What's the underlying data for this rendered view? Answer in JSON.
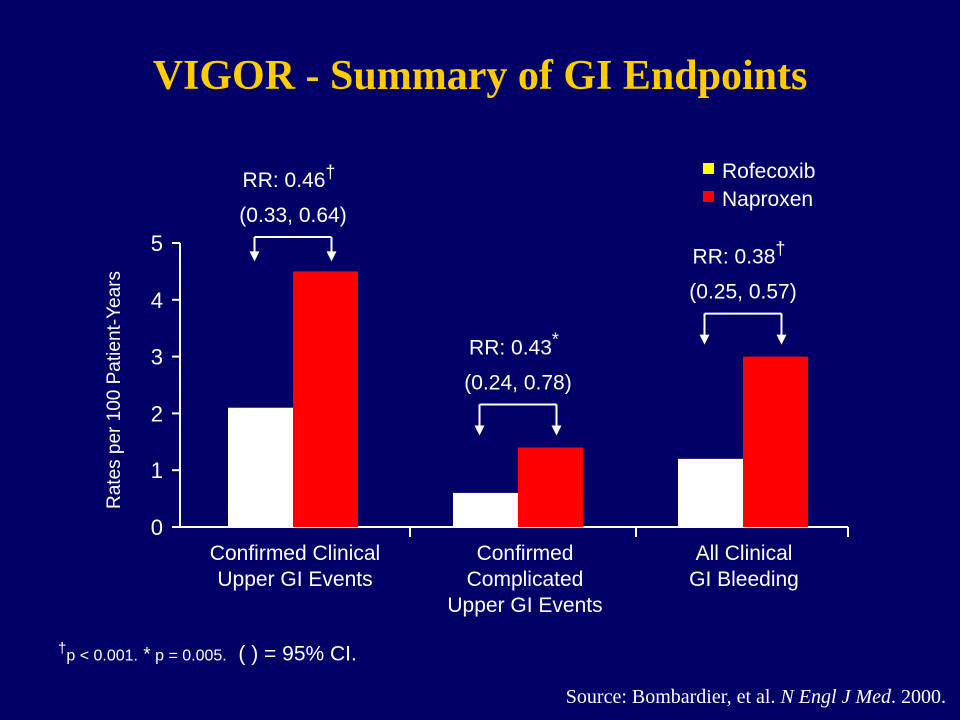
{
  "title": "VIGOR - Summary of GI Endpoints",
  "chart_data": {
    "type": "bar",
    "ylabel": "Rates per 100 Patient-Years",
    "ylim": [
      0,
      5
    ],
    "yticks": [
      0,
      1,
      2,
      3,
      4,
      5
    ],
    "categories": [
      [
        "Confirmed Clinical",
        "Upper GI Events"
      ],
      [
        "Confirmed",
        "Complicated",
        "Upper GI Events"
      ],
      [
        "All Clinical",
        "GI Bleeding"
      ]
    ],
    "series": [
      {
        "name": "Rofecoxib",
        "color": "#ffffff",
        "values": [
          2.1,
          0.6,
          1.2
        ]
      },
      {
        "name": "Naproxen",
        "color": "#ff0000",
        "values": [
          4.5,
          1.4,
          3.0
        ]
      }
    ],
    "legend_position": "top-right",
    "legend_marker_colors": [
      "#ffff00",
      "#ff0000"
    ],
    "annotations": [
      {
        "rr": "RR: 0.46",
        "mark": "†",
        "ci": "(0.33, 0.64)"
      },
      {
        "rr": "RR: 0.43",
        "mark": "*",
        "ci": "(0.24, 0.78)"
      },
      {
        "rr": "RR: 0.38",
        "mark": "†",
        "ci": "(0.25, 0.57)"
      }
    ],
    "grid": false
  },
  "footnote": {
    "dagger": "†",
    "p1": "p",
    "p1_value": " < 0.001.",
    "star": " *",
    "p2": " p",
    "p2_value": " = 0.005.",
    "ci_note": "  ( ) = 95% CI."
  },
  "source": {
    "prefix": "Source: Bombardier, et al. ",
    "journal": "N Engl J Med",
    "suffix": ". 2000."
  },
  "colors": {
    "background": "#000066",
    "title": "#ffcc00",
    "axis": "#ffffff"
  }
}
